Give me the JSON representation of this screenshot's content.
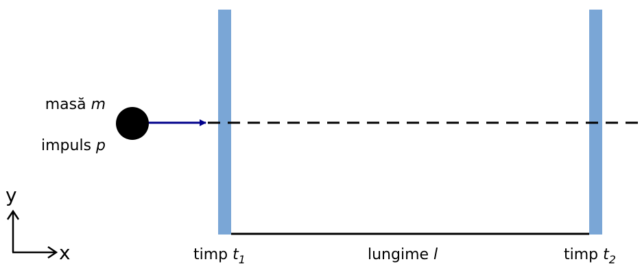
{
  "colors": {
    "detector": "#7aa6d6",
    "arrow": "#00008b",
    "particle": "#000000",
    "line": "#000000"
  },
  "particle": {
    "mass_label": "masă",
    "mass_symbol": "m",
    "momentum_label": "impuls",
    "momentum_symbol": "p"
  },
  "detectors": {
    "t1_label": "timp",
    "t1_symbol": "t",
    "t1_sub": "1",
    "t2_label": "timp",
    "t2_symbol": "t",
    "t2_sub": "2"
  },
  "length": {
    "label": "lungime",
    "symbol": "l"
  },
  "axes": {
    "y": "y",
    "x": "x"
  }
}
